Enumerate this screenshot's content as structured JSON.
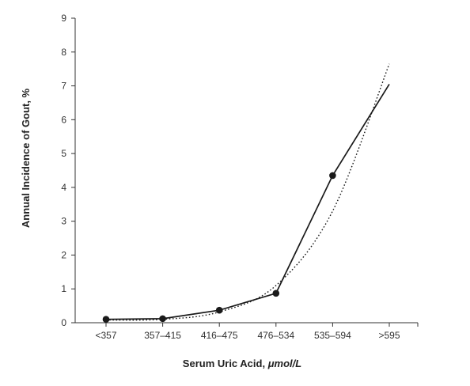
{
  "chart_data": {
    "type": "line",
    "categories": [
      "<357",
      "357–415",
      "416–475",
      "476–534",
      "535–594",
      ">595"
    ],
    "series": [
      {
        "style": "solid-with-markers",
        "values": [
          0.1,
          0.12,
          0.37,
          0.87,
          4.35,
          7.05
        ]
      },
      {
        "style": "dotted-trend",
        "values": [
          0.08,
          0.1,
          0.32,
          1.1,
          3.3,
          7.65
        ]
      }
    ],
    "xlabel_prefix": "Serum Uric Acid, ",
    "xlabel_unit": "μmol/L",
    "ylabel": "Annual Incidence of Gout, %",
    "ylim": [
      0,
      9
    ],
    "yticks": [
      0,
      1,
      2,
      3,
      4,
      5,
      6,
      7,
      8,
      9
    ],
    "grid": false,
    "legend": "none",
    "colors": {
      "line": "#1a1a1a",
      "axis": "#333333"
    }
  }
}
